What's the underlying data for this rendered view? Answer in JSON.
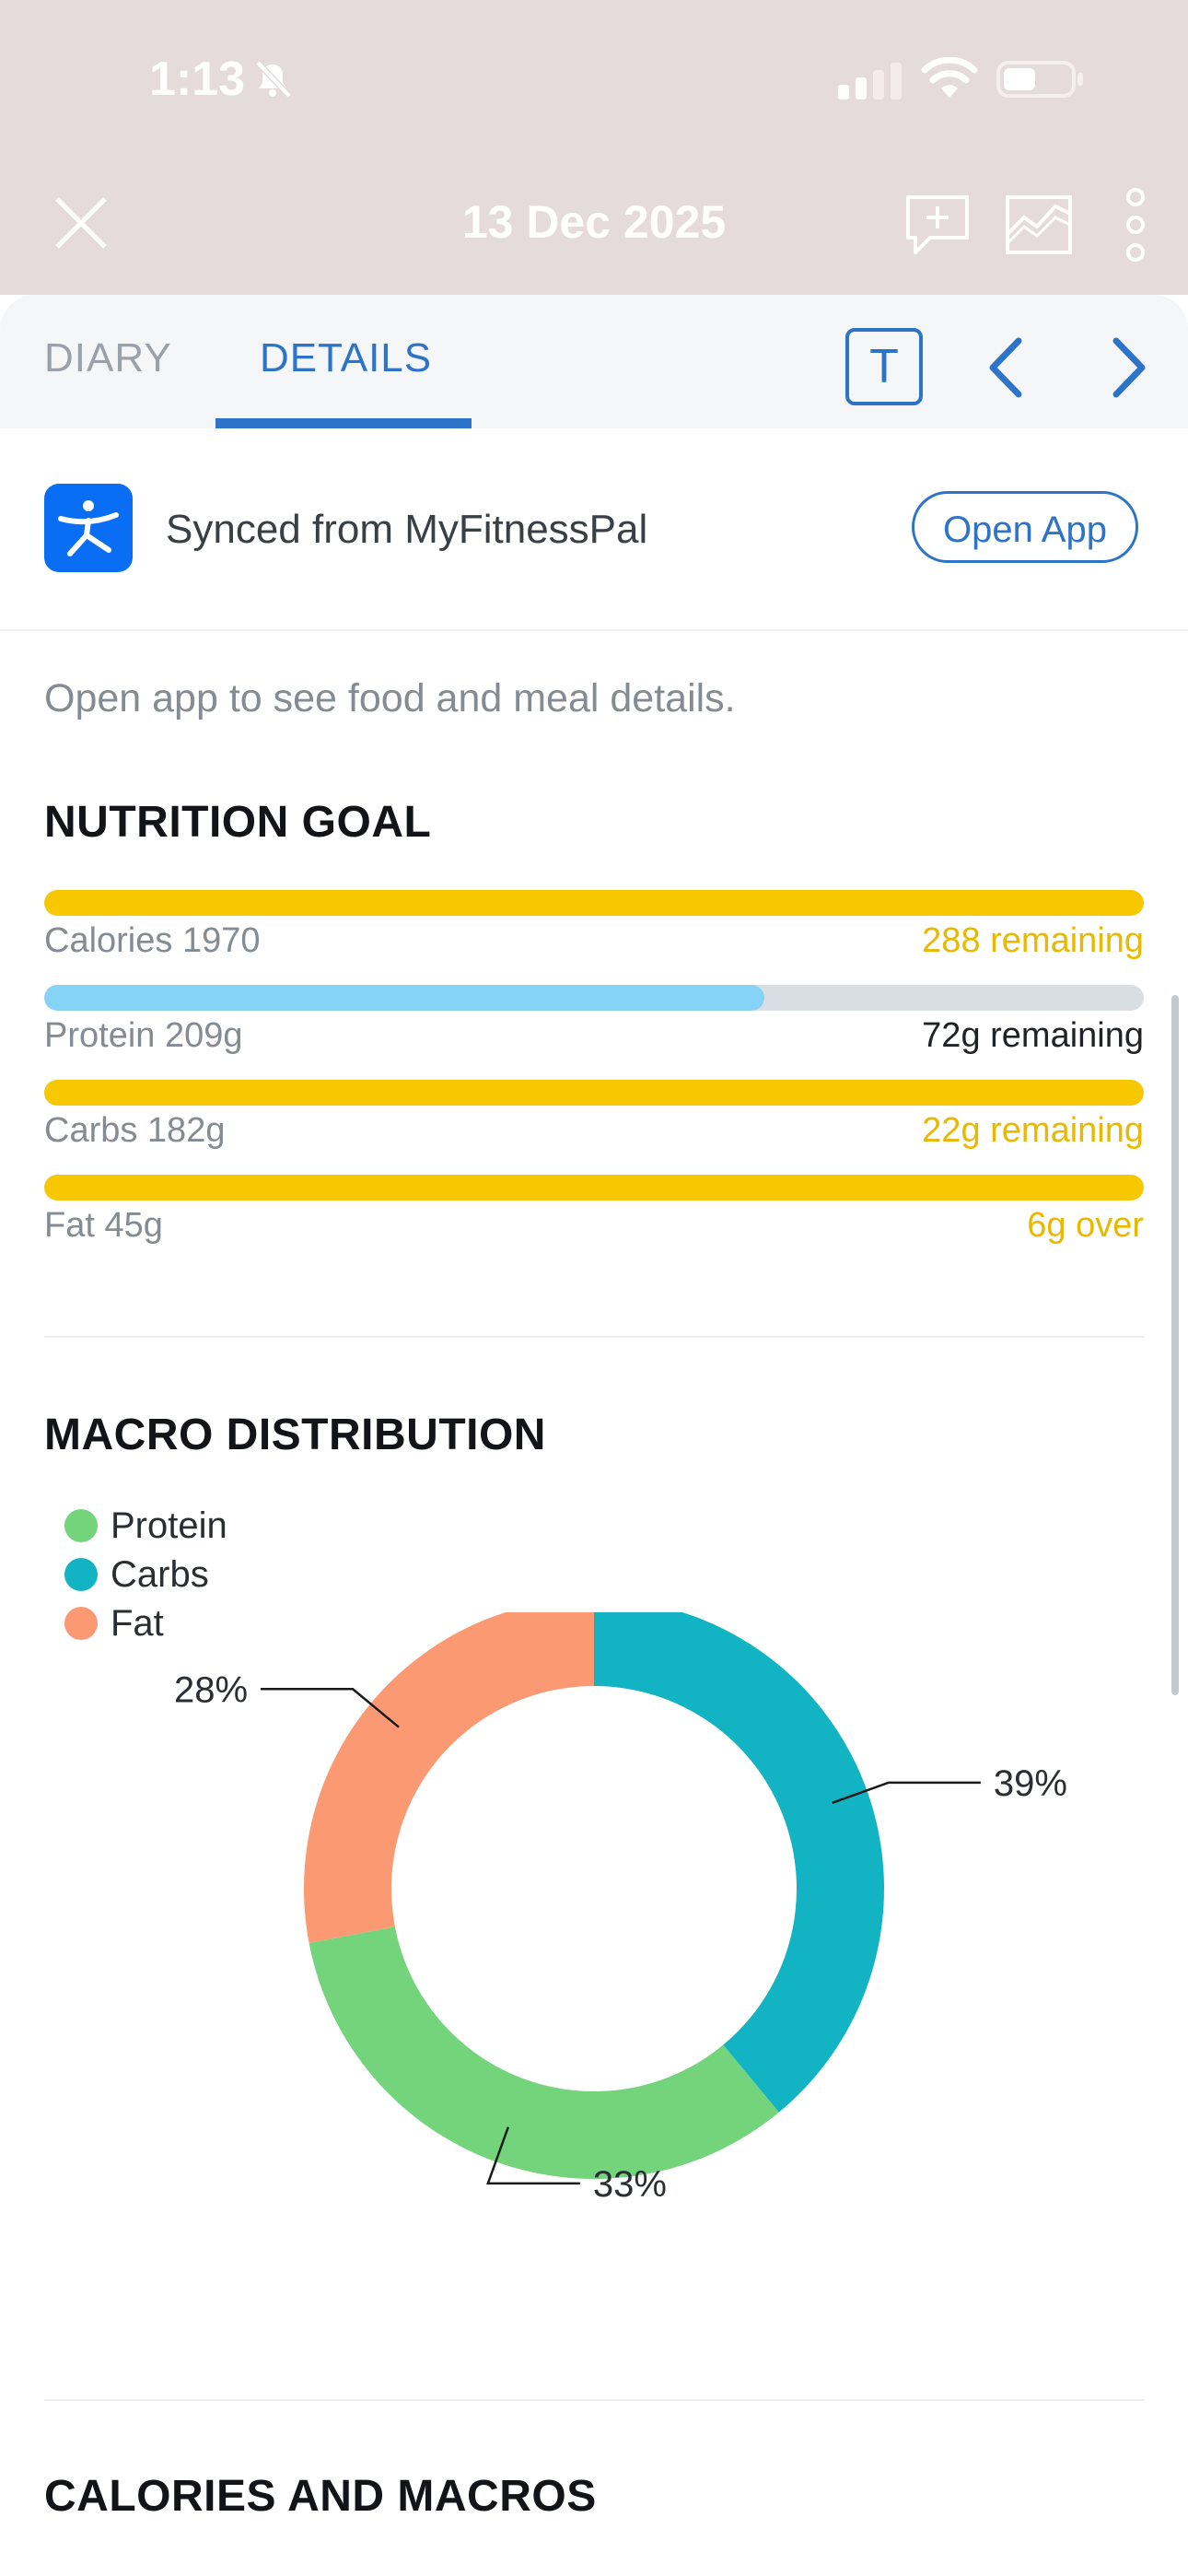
{
  "status": {
    "time": "1:13"
  },
  "header": {
    "date": "13 Dec 2025"
  },
  "tabs": {
    "diary": "DIARY",
    "details": "DETAILS",
    "t_button": "T"
  },
  "sync": {
    "text": "Synced from MyFitnessPal",
    "button": "Open App"
  },
  "hint": "Open app to see food and meal details.",
  "nutrition": {
    "title": "NUTRITION GOAL",
    "rows": [
      {
        "label": "Calories 1970",
        "status": "288 remaining",
        "progress": 1.0,
        "bar_color": "#f7c700",
        "status_color": "#e9b800"
      },
      {
        "label": "Protein 209g",
        "status": "72g remaining",
        "progress": 0.655,
        "bar_color": "#86d3f8",
        "status_color": "#1f2226"
      },
      {
        "label": "Carbs 182g",
        "status": "22g remaining",
        "progress": 1.0,
        "bar_color": "#f7c700",
        "status_color": "#e9b800"
      },
      {
        "label": "Fat 45g",
        "status": "6g over",
        "progress": 1.0,
        "bar_color": "#f7c700",
        "status_color": "#e9b800"
      }
    ]
  },
  "macro": {
    "title": "MACRO DISTRIBUTION",
    "legend": [
      {
        "name": "Protein",
        "color": "#74d47c"
      },
      {
        "name": "Carbs",
        "color": "#12b4c4"
      },
      {
        "name": "Fat",
        "color": "#fb9a72"
      }
    ]
  },
  "chart_data": {
    "type": "pie",
    "donut": true,
    "categories": [
      "Protein",
      "Carbs",
      "Fat"
    ],
    "values": [
      33,
      39,
      28
    ],
    "labels": [
      "33%",
      "39%",
      "28%"
    ],
    "colors": [
      "#74d47c",
      "#12b4c4",
      "#fb9a72"
    ],
    "legend_position": "top-left"
  },
  "calories_macros": {
    "title": "CALORIES AND MACROS"
  }
}
